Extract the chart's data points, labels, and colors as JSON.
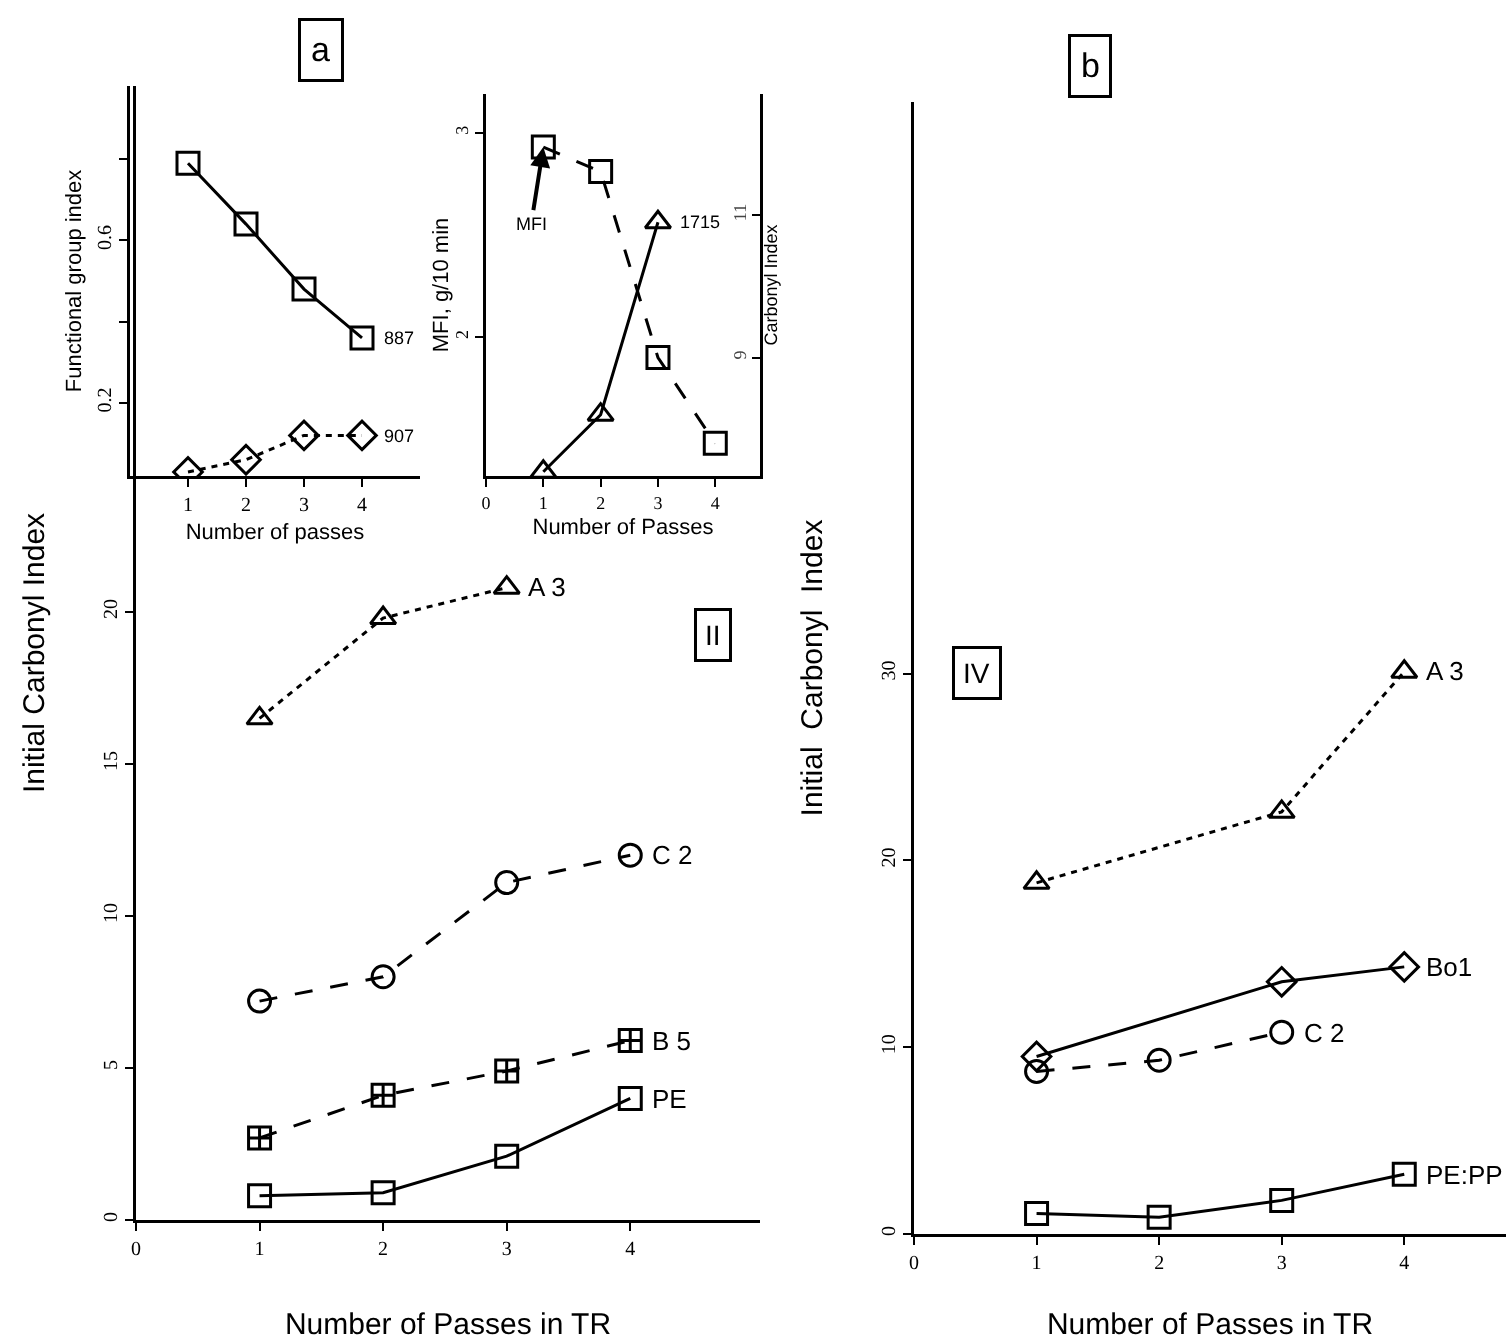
{
  "chart_data": [
    {
      "type": "line",
      "title": "a",
      "xlabel": "Number of Passes in TR",
      "ylabel": "Initial Carbonyl Index",
      "xlim": [
        0,
        5.05
      ],
      "xticks": [
        0,
        1,
        2,
        3,
        4
      ],
      "ylim": [
        0,
        37.3
      ],
      "yticks": [
        0,
        5,
        10,
        15,
        20
      ],
      "x": [
        1,
        2,
        3,
        4
      ],
      "annotations": [
        "II"
      ],
      "series": [
        {
          "name": "A 3",
          "color": "#000000",
          "x": [
            1,
            2,
            3
          ],
          "values": [
            16.5,
            19.8,
            20.8
          ],
          "marker": "triangle",
          "line_style": "dotted"
        },
        {
          "name": "C 2",
          "color": "#000000",
          "values": [
            7.2,
            8.0,
            11.1,
            12.0
          ],
          "marker": "circle",
          "line_style": "dashed"
        },
        {
          "name": "B 5",
          "color": "#000000",
          "values": [
            2.7,
            4.1,
            4.9,
            5.9
          ],
          "marker": "cross",
          "line_style": "dashed"
        },
        {
          "name": "PE",
          "color": "#000000",
          "values": [
            0.8,
            0.9,
            2.1,
            4.0
          ],
          "marker": "square",
          "line_style": "solid"
        }
      ]
    },
    {
      "type": "line",
      "xlabel": "Number of passes",
      "ylabel": "Functional group index",
      "xlim": [
        0,
        5
      ],
      "xticks": [
        1,
        2,
        3,
        4
      ],
      "ylim": [
        0.02,
        0.98
      ],
      "yticks": [
        0.2,
        {
          "value": 0.4,
          "label": null
        },
        0.6,
        {
          "value": 0.8,
          "label": null
        }
      ],
      "x": [
        1,
        2,
        3,
        4
      ],
      "series": [
        {
          "name": "887",
          "color": "#000000",
          "values": [
            0.79,
            0.64,
            0.48,
            0.36
          ],
          "marker": "square",
          "line_style": "solid"
        },
        {
          "name": "907",
          "color": "#000000",
          "values": [
            0.03,
            0.06,
            0.12,
            0.12
          ],
          "marker": "diamond",
          "line_style": "dotted"
        }
      ]
    },
    {
      "type": "line",
      "xlabel": "Number of Passes",
      "ylabel": "MFI, g/10 min",
      "y2label": "Carbonyl Index",
      "xlim": [
        0,
        4.78
      ],
      "xticks": [
        0,
        1,
        2,
        3,
        4
      ],
      "ylim": [
        1.32,
        3.19
      ],
      "yticks": [
        2,
        3
      ],
      "y2lim": [
        7.34,
        12.7
      ],
      "y2ticks": [
        9,
        11
      ],
      "x": [
        1,
        2,
        3,
        4
      ],
      "annotations": [
        {
          "text": "MFI",
          "x": 1,
          "y": 2.93
        }
      ],
      "series": [
        {
          "color": "#000000",
          "values": [
            2.93,
            2.81,
            1.9,
            1.48
          ],
          "marker": "square",
          "line_style": "dashed"
        },
        {
          "name": "1715",
          "color": "#000000",
          "x": [
            1,
            2,
            3
          ],
          "values": [
            7.4,
            8.2,
            10.9
          ],
          "marker": "triangle",
          "line_style": "solid",
          "axis": "y2"
        }
      ]
    },
    {
      "type": "line",
      "title": "b",
      "xlabel": "Number of Passes in TR",
      "ylabel": "Initial  Carbonyl  Index",
      "xlim": [
        0,
        4.83
      ],
      "xticks": [
        0,
        1,
        2,
        3,
        4
      ],
      "ylim": [
        0,
        60.6
      ],
      "yticks": [
        0,
        10,
        20,
        30
      ],
      "annotations": [
        "IV"
      ],
      "series": [
        {
          "name": "A 3",
          "color": "#000000",
          "x": [
            1,
            3,
            4
          ],
          "values": [
            18.8,
            22.6,
            30.1
          ],
          "marker": "triangle",
          "line_style": "dotted"
        },
        {
          "name": "Bo1",
          "color": "#000000",
          "x": [
            1,
            3,
            4
          ],
          "values": [
            9.5,
            13.5,
            14.3
          ],
          "marker": "diamond",
          "line_style": "solid"
        },
        {
          "name": "C 2",
          "color": "#000000",
          "x": [
            1,
            2,
            3
          ],
          "values": [
            8.7,
            9.3,
            10.8
          ],
          "marker": "circle",
          "line_style": "dashed"
        },
        {
          "name": "PE:PP",
          "color": "#000000",
          "x": [
            1,
            2,
            3,
            4
          ],
          "values": [
            1.1,
            0.9,
            1.8,
            3.2
          ],
          "marker": "square",
          "line_style": "solid"
        }
      ]
    }
  ]
}
